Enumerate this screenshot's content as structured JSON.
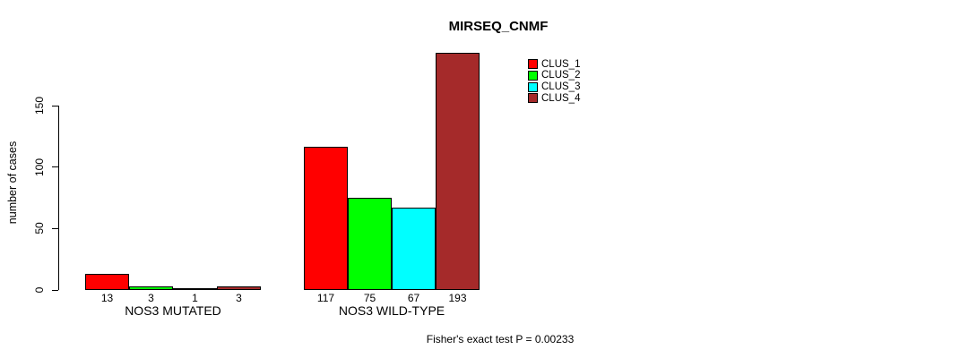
{
  "chart_data": {
    "type": "bar",
    "title": "MIRSEQ_CNMF",
    "xlabel": "",
    "ylabel": "number of cases",
    "categories": [
      "NOS3 MUTATED",
      "NOS3 WILD-TYPE"
    ],
    "series": [
      {
        "name": "CLUS_1",
        "color": "#FF0000",
        "values": [
          13,
          117
        ]
      },
      {
        "name": "CLUS_2",
        "color": "#00FF00",
        "values": [
          3,
          75
        ]
      },
      {
        "name": "CLUS_3",
        "color": "#00FFFF",
        "values": [
          1,
          67
        ]
      },
      {
        "name": "CLUS_4",
        "color": "#A52A2A",
        "values": [
          3,
          193
        ]
      }
    ],
    "ylim": [
      0,
      150
    ],
    "yticks": [
      0,
      50,
      100,
      150
    ],
    "grid": false,
    "legend_position": "inside-top-right",
    "bar_value_labels": true,
    "annotation": "Fisher's exact test P = 0.00233"
  }
}
